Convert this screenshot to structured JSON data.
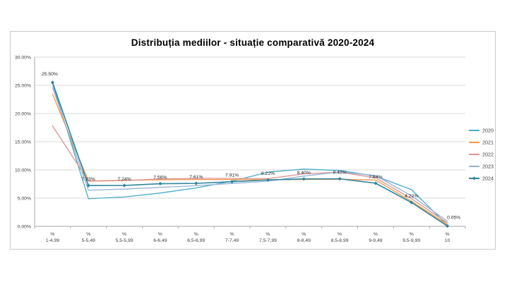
{
  "chart_data": {
    "type": "line",
    "title": "Distribuția mediilor - situație comparativă 2020-2024",
    "categories": [
      [
        "%",
        "1-4,99"
      ],
      [
        "%",
        "5-5,49"
      ],
      [
        "%",
        "5,5-5,99"
      ],
      [
        "%",
        "6-6,49"
      ],
      [
        "%",
        "6,5-6,99"
      ],
      [
        "%",
        "7-7,49"
      ],
      [
        "%",
        "7,5-7,99"
      ],
      [
        "%",
        "8-8,49"
      ],
      [
        "%",
        "8,5-8,99"
      ],
      [
        "%",
        "9-9,49"
      ],
      [
        "%",
        "9,5-9,99"
      ],
      [
        "%",
        "10"
      ]
    ],
    "y_ticks": [
      "0.00%",
      "5.00%",
      "10.00%",
      "15.00%",
      "20.00%",
      "25.00%",
      "30.00%"
    ],
    "ylim": [
      0,
      30
    ],
    "y_step": 5,
    "grid": true,
    "legend_position": "right",
    "series": [
      {
        "name": "2020",
        "color": "#4bacc6",
        "marker": false,
        "values": [
          25.3,
          4.9,
          5.2,
          5.9,
          6.8,
          8.0,
          9.6,
          10.15,
          9.9,
          8.9,
          6.5,
          0.2
        ]
      },
      {
        "name": "2021",
        "color": "#f79646",
        "marker": false,
        "values": [
          23.4,
          8.05,
          8.15,
          8.25,
          8.3,
          8.3,
          8.25,
          8.3,
          8.35,
          8.2,
          4.45,
          0.3
        ]
      },
      {
        "name": "2022",
        "color": "#d99694",
        "marker": false,
        "values": [
          17.8,
          8.0,
          8.1,
          8.4,
          8.5,
          8.5,
          8.45,
          9.3,
          9.6,
          8.6,
          4.9,
          0.6
        ]
      },
      {
        "name": "2023",
        "color": "#95b3d7",
        "marker": false,
        "values": [
          24.6,
          6.4,
          6.6,
          6.9,
          7.2,
          7.6,
          8.0,
          8.9,
          9.65,
          9.0,
          5.4,
          0.9
        ]
      },
      {
        "name": "2024",
        "color": "#31859c",
        "marker": true,
        "values": [
          25.5,
          7.23,
          7.24,
          7.56,
          7.61,
          7.91,
          8.22,
          8.4,
          8.42,
          7.64,
          4.22,
          0.05
        ],
        "data_labels": [
          "25.50%",
          "7.23%",
          "7.24%",
          "7.56%",
          "7.61%",
          "7.91%",
          "8.22%",
          "8.40%",
          "8.42%",
          "7.64%",
          "4.22%",
          "0.05%"
        ]
      }
    ],
    "colors": {
      "gridline": "#d9d9d9",
      "axis": "#a6a6a6",
      "tick_label": "#404040",
      "data_label": "#262626",
      "frame_border": "#c9c9c9"
    }
  }
}
